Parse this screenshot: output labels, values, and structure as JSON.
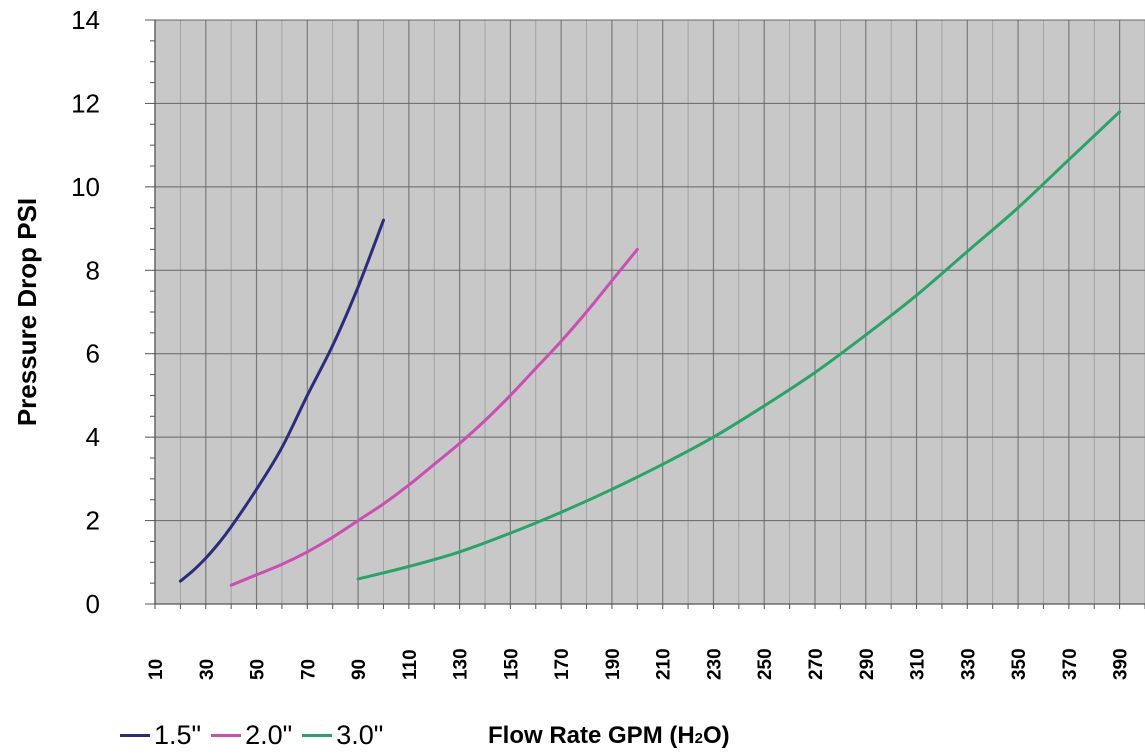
{
  "chart_data": {
    "type": "line",
    "ylabel": "Pressure Drop PSI",
    "xlabel_main": "Flow Rate GPM (H",
    "xlabel_sub": "2",
    "xlabel_end": "O)",
    "xlim": [
      10,
      400
    ],
    "ylim": [
      0,
      14
    ],
    "x_ticks": [
      "10",
      "30",
      "50",
      "70",
      "90",
      "110",
      "130",
      "150",
      "170",
      "190",
      "210",
      "230",
      "250",
      "270",
      "290",
      "310",
      "330",
      "350",
      "370",
      "390"
    ],
    "y_ticks": [
      "0",
      "2",
      "4",
      "6",
      "8",
      "10",
      "12",
      "14"
    ],
    "grid": true,
    "background": "#c8c8c8",
    "legend_position": "bottom-left",
    "series": [
      {
        "name": "1.5\"",
        "color": "#2e2a7e",
        "x": [
          20,
          25,
          30,
          35,
          40,
          50,
          60,
          70,
          80,
          90,
          100
        ],
        "y": [
          0.55,
          0.8,
          1.1,
          1.45,
          1.85,
          2.75,
          3.75,
          5.0,
          6.2,
          7.6,
          9.2
        ]
      },
      {
        "name": "2.0\"",
        "color": "#c94fb3",
        "x": [
          40,
          50,
          60,
          70,
          80,
          90,
          100,
          110,
          120,
          130,
          140,
          150,
          160,
          170,
          180,
          190,
          200
        ],
        "y": [
          0.45,
          0.7,
          0.95,
          1.25,
          1.6,
          2.0,
          2.4,
          2.85,
          3.35,
          3.85,
          4.4,
          5.0,
          5.65,
          6.3,
          7.0,
          7.75,
          8.5
        ]
      },
      {
        "name": "3.0\"",
        "color": "#2aa36b",
        "x": [
          90,
          110,
          130,
          150,
          170,
          190,
          210,
          230,
          250,
          270,
          290,
          310,
          330,
          350,
          370,
          390
        ],
        "y": [
          0.6,
          0.9,
          1.25,
          1.7,
          2.2,
          2.75,
          3.35,
          4.0,
          4.75,
          5.55,
          6.45,
          7.4,
          8.45,
          9.5,
          10.65,
          11.8
        ]
      }
    ]
  }
}
